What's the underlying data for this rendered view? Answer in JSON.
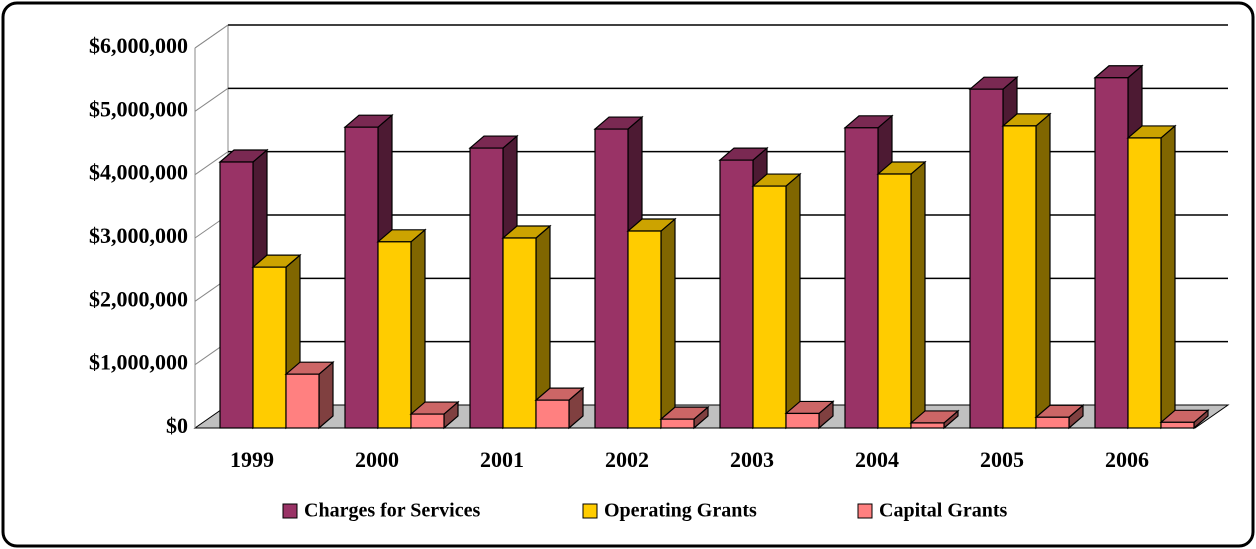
{
  "chart_data": {
    "type": "bar3d",
    "categories": [
      "1999",
      "2000",
      "2001",
      "2002",
      "2003",
      "2004",
      "2005",
      "2006"
    ],
    "series": [
      {
        "name": "Charges for Services",
        "color": "#993366",
        "values": [
          4200000,
          4750000,
          4420000,
          4720000,
          4230000,
          4740000,
          5350000,
          5530000
        ]
      },
      {
        "name": "Operating Grants",
        "color": "#ffcc00",
        "values": [
          2540000,
          2940000,
          3000000,
          3110000,
          3820000,
          4010000,
          4770000,
          4580000
        ]
      },
      {
        "name": "Capital Grants",
        "color": "#ff8080",
        "values": [
          850000,
          220000,
          440000,
          140000,
          230000,
          80000,
          170000,
          90000
        ]
      }
    ],
    "ylim": [
      0,
      6000000
    ],
    "yticks": [
      {
        "value": 0,
        "label": "$0"
      },
      {
        "value": 1000000,
        "label": "$1,000,000"
      },
      {
        "value": 2000000,
        "label": "$2,000,000"
      },
      {
        "value": 3000000,
        "label": "$3,000,000"
      },
      {
        "value": 4000000,
        "label": "$4,000,000"
      },
      {
        "value": 5000000,
        "label": "$5,000,000"
      },
      {
        "value": 6000000,
        "label": "$6,000,000"
      }
    ],
    "grid": true,
    "legend": "bottom"
  }
}
